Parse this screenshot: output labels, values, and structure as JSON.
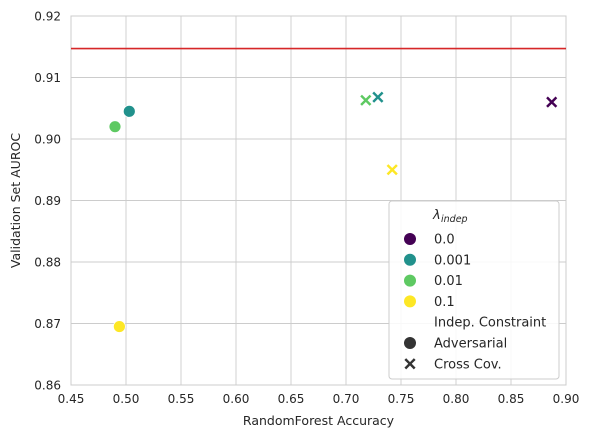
{
  "chart_data": {
    "type": "scatter",
    "title": "",
    "xlabel": "RandomForest Accuracy",
    "ylabel": "Validation Set AUROC",
    "xlim": [
      0.45,
      0.9
    ],
    "ylim": [
      0.86,
      0.92
    ],
    "xticks": [
      "0.45",
      "0.50",
      "0.55",
      "0.60",
      "0.65",
      "0.70",
      "0.75",
      "0.80",
      "0.85",
      "0.90"
    ],
    "yticks": [
      "0.86",
      "0.87",
      "0.88",
      "0.89",
      "0.90",
      "0.91",
      "0.92"
    ],
    "grid": true,
    "hline": {
      "y": 0.9147,
      "color": "#d62728"
    },
    "legend": {
      "position": "lower-right",
      "title_main": "λ",
      "title_sub": "indep",
      "hue_entries": [
        {
          "label": "0.0",
          "color": "#440154"
        },
        {
          "label": "0.001",
          "color": "#21918c"
        },
        {
          "label": "0.01",
          "color": "#5ec962"
        },
        {
          "label": "0.1",
          "color": "#fde725"
        }
      ],
      "style_title": "Indep. Constraint",
      "style_entries": [
        {
          "label": "Adversarial",
          "marker": "circle"
        },
        {
          "label": "Cross Cov.",
          "marker": "x"
        }
      ]
    },
    "points": [
      {
        "x": 0.503,
        "y": 0.9045,
        "lambda": "0.001",
        "constraint": "Adversarial"
      },
      {
        "x": 0.49,
        "y": 0.902,
        "lambda": "0.01",
        "constraint": "Adversarial"
      },
      {
        "x": 0.494,
        "y": 0.8695,
        "lambda": "0.1",
        "constraint": "Adversarial"
      },
      {
        "x": 0.887,
        "y": 0.906,
        "lambda": "0.0",
        "constraint": "Cross Cov."
      },
      {
        "x": 0.729,
        "y": 0.9068,
        "lambda": "0.001",
        "constraint": "Cross Cov."
      },
      {
        "x": 0.718,
        "y": 0.9063,
        "lambda": "0.01",
        "constraint": "Cross Cov."
      },
      {
        "x": 0.742,
        "y": 0.895,
        "lambda": "0.1",
        "constraint": "Cross Cov."
      }
    ]
  }
}
